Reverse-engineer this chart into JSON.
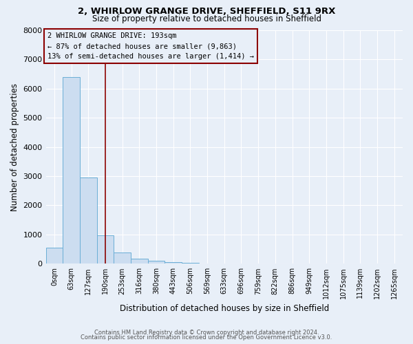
{
  "title1": "2, WHIRLOW GRANGE DRIVE, SHEFFIELD, S11 9RX",
  "title2": "Size of property relative to detached houses in Sheffield",
  "xlabel": "Distribution of detached houses by size in Sheffield",
  "ylabel": "Number of detached properties",
  "bar_labels": [
    "0sqm",
    "63sqm",
    "127sqm",
    "190sqm",
    "253sqm",
    "316sqm",
    "380sqm",
    "443sqm",
    "506sqm",
    "569sqm",
    "633sqm",
    "696sqm",
    "759sqm",
    "822sqm",
    "886sqm",
    "949sqm",
    "1012sqm",
    "1075sqm",
    "1139sqm",
    "1202sqm",
    "1265sqm"
  ],
  "bar_values": [
    540,
    6400,
    2950,
    980,
    380,
    175,
    90,
    50,
    25,
    15,
    10,
    7,
    5,
    4,
    3,
    2,
    2,
    1,
    1,
    1,
    1
  ],
  "bar_color": "#ccddf0",
  "bar_edge_color": "#6aaed6",
  "vline_x": 3,
  "vline_color": "#8B0000",
  "ylim": [
    0,
    8000
  ],
  "yticks": [
    0,
    1000,
    2000,
    3000,
    4000,
    5000,
    6000,
    7000,
    8000
  ],
  "annotation_title": "2 WHIRLOW GRANGE DRIVE: 193sqm",
  "annotation_line1": "← 87% of detached houses are smaller (9,863)",
  "annotation_line2": "13% of semi-detached houses are larger (1,414) →",
  "annotation_box_color": "#8B0000",
  "footer1": "Contains HM Land Registry data © Crown copyright and database right 2024.",
  "footer2": "Contains public sector information licensed under the Open Government Licence v3.0.",
  "bg_color": "#e8eff8",
  "grid_color": "#ffffff"
}
